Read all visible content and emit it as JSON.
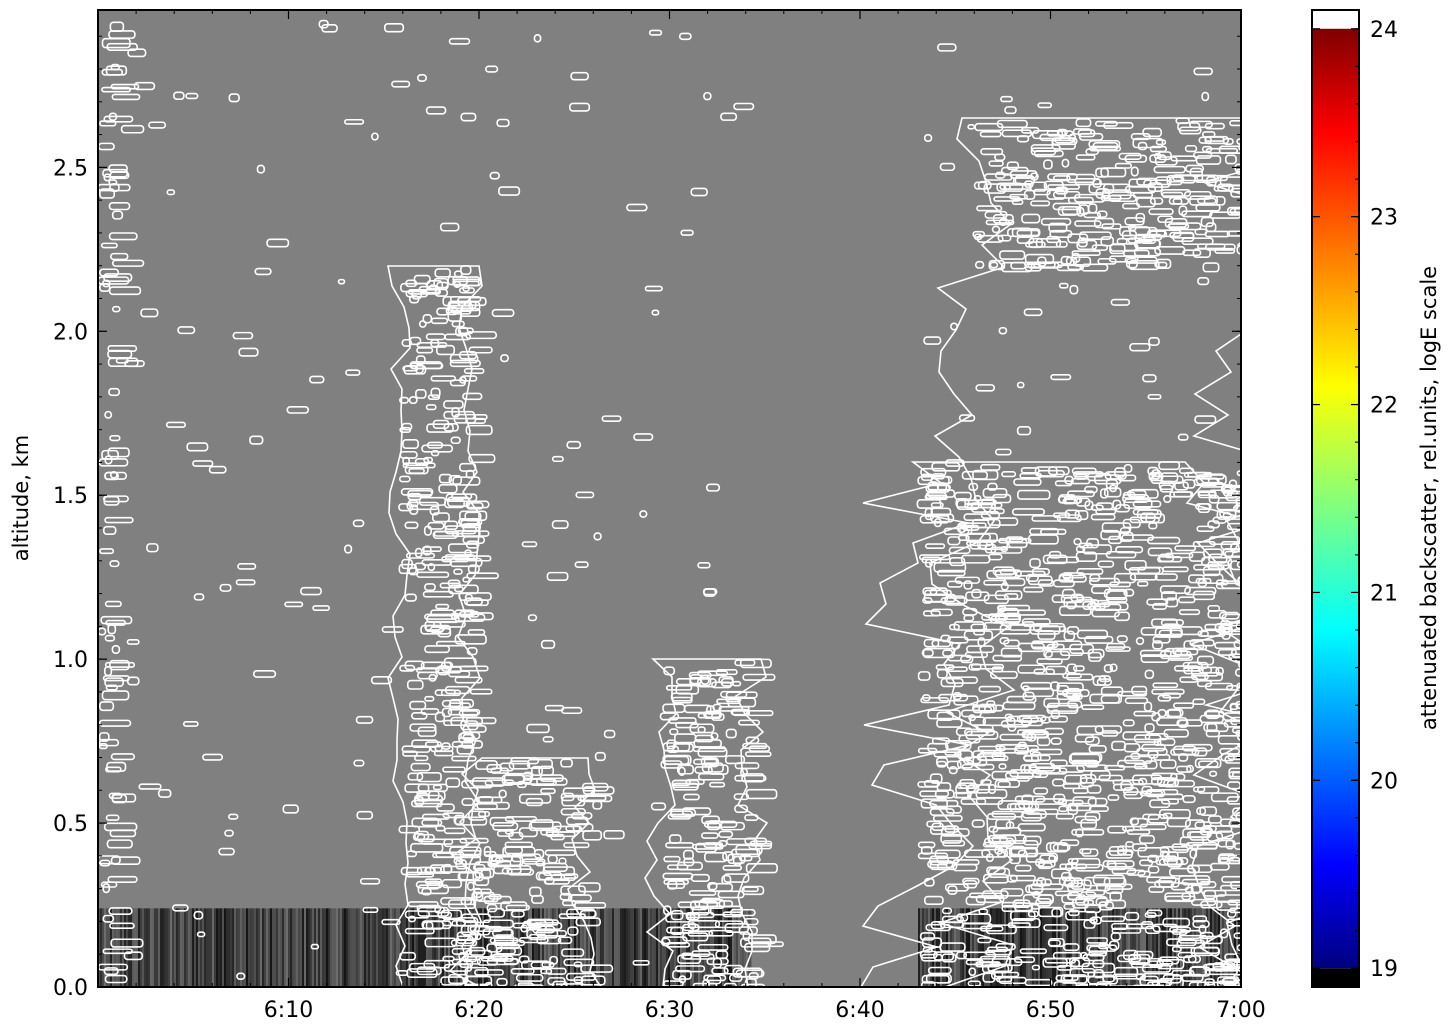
{
  "chart_data": {
    "type": "heatmap",
    "title": "",
    "xlabel": "",
    "ylabel": "altitude, km",
    "x_ticks": [
      "6:10",
      "6:20",
      "6:30",
      "6:40",
      "6:50",
      "7:00"
    ],
    "x_tick_minutes": [
      10,
      20,
      30,
      40,
      50,
      60
    ],
    "xlim_minutes_after_6_00": [
      0,
      60
    ],
    "y_ticks": [
      "0.0",
      "0.5",
      "1.0",
      "1.5",
      "2.0",
      "2.5"
    ],
    "y_tick_values": [
      0.0,
      0.5,
      1.0,
      1.5,
      2.0,
      2.5
    ],
    "ylim": [
      0.0,
      2.98
    ],
    "background_color": "#808080",
    "contour_color": "#ffffff",
    "no_data_gap_minutes": [
      34.3,
      43.0
    ],
    "near_surface_layer_top_km": 0.24,
    "colorbar": {
      "label": "attenuated backscatter, rel.units, logE scale",
      "ticks": [
        "19",
        "20",
        "21",
        "22",
        "23",
        "24"
      ],
      "tick_values": [
        19,
        20,
        21,
        22,
        23,
        24
      ],
      "range": [
        18.9,
        24.1
      ],
      "colormap": "jet"
    },
    "cloud_regions": [
      {
        "name": "left-edge column",
        "t_start": 0.0,
        "t_end": 0.8,
        "alt_min": 0.0,
        "alt_max": 2.98
      },
      {
        "name": "plume near 6:17",
        "t_start": 15.8,
        "t_end": 19.5,
        "alt_min": 0.0,
        "alt_max": 2.2
      },
      {
        "name": "layer near 6:21",
        "t_start": 19.5,
        "t_end": 25.5,
        "alt_min": 0.0,
        "alt_max": 0.7
      },
      {
        "name": "column near 6:31",
        "t_start": 29.5,
        "t_end": 34.3,
        "alt_min": 0.0,
        "alt_max": 1.0
      },
      {
        "name": "late cloud field",
        "t_start": 43.0,
        "t_end": 60.0,
        "alt_min": 0.0,
        "alt_max": 1.6
      },
      {
        "name": "upper cloud layer",
        "t_start": 46.0,
        "t_end": 60.0,
        "alt_min": 2.2,
        "alt_max": 2.65
      }
    ]
  }
}
